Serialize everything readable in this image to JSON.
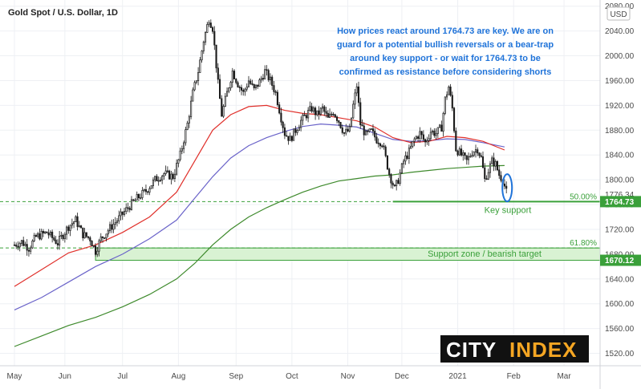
{
  "chart_data": {
    "type": "candlestick",
    "title": "Gold Spot / U.S. Dollar, 1D",
    "currency_badge": "USD",
    "x_labels": [
      "May",
      "Jun",
      "Jul",
      "Aug",
      "Sep",
      "Oct",
      "Nov",
      "Dec",
      "2021",
      "Feb",
      "Mar"
    ],
    "y_ticks": [
      1520,
      1560,
      1600,
      1640,
      1680,
      1720,
      1760,
      1800,
      1840,
      1880,
      1920,
      1960,
      2000,
      2040,
      2080
    ],
    "ylim": [
      1500,
      2090
    ],
    "price_path": [
      {
        "x": 0,
        "y": 1695
      },
      {
        "x": 4,
        "y": 1700
      },
      {
        "x": 8,
        "y": 1690
      },
      {
        "x": 12,
        "y": 1708
      },
      {
        "x": 18,
        "y": 1715
      },
      {
        "x": 24,
        "y": 1698
      },
      {
        "x": 30,
        "y": 1725
      },
      {
        "x": 34,
        "y": 1735
      },
      {
        "x": 38,
        "y": 1712
      },
      {
        "x": 42,
        "y": 1705
      },
      {
        "x": 45,
        "y": 1685
      },
      {
        "x": 48,
        "y": 1705
      },
      {
        "x": 53,
        "y": 1722
      },
      {
        "x": 58,
        "y": 1738
      },
      {
        "x": 63,
        "y": 1755
      },
      {
        "x": 68,
        "y": 1770
      },
      {
        "x": 73,
        "y": 1782
      },
      {
        "x": 78,
        "y": 1800
      },
      {
        "x": 83,
        "y": 1810
      },
      {
        "x": 88,
        "y": 1805
      },
      {
        "x": 92,
        "y": 1840
      },
      {
        "x": 96,
        "y": 1890
      },
      {
        "x": 99,
        "y": 1940
      },
      {
        "x": 102,
        "y": 1975
      },
      {
        "x": 105,
        "y": 2025
      },
      {
        "x": 108,
        "y": 2060
      },
      {
        "x": 110,
        "y": 2045
      },
      {
        "x": 113,
        "y": 1955
      },
      {
        "x": 115,
        "y": 1905
      },
      {
        "x": 118,
        "y": 1940
      },
      {
        "x": 121,
        "y": 1975
      },
      {
        "x": 124,
        "y": 1955
      },
      {
        "x": 127,
        "y": 1940
      },
      {
        "x": 130,
        "y": 1960
      },
      {
        "x": 133,
        "y": 1945
      },
      {
        "x": 136,
        "y": 1958
      },
      {
        "x": 139,
        "y": 1975
      },
      {
        "x": 142,
        "y": 1960
      },
      {
        "x": 145,
        "y": 1940
      },
      {
        "x": 148,
        "y": 1900
      },
      {
        "x": 150,
        "y": 1875
      },
      {
        "x": 153,
        "y": 1865
      },
      {
        "x": 156,
        "y": 1880
      },
      {
        "x": 159,
        "y": 1895
      },
      {
        "x": 162,
        "y": 1905
      },
      {
        "x": 165,
        "y": 1915
      },
      {
        "x": 168,
        "y": 1905
      },
      {
        "x": 171,
        "y": 1915
      },
      {
        "x": 174,
        "y": 1898
      },
      {
        "x": 177,
        "y": 1910
      },
      {
        "x": 180,
        "y": 1895
      },
      {
        "x": 183,
        "y": 1875
      },
      {
        "x": 186,
        "y": 1880
      },
      {
        "x": 188,
        "y": 1920
      },
      {
        "x": 190,
        "y": 1952
      },
      {
        "x": 192,
        "y": 1890
      },
      {
        "x": 195,
        "y": 1872
      },
      {
        "x": 198,
        "y": 1878
      },
      {
        "x": 201,
        "y": 1865
      },
      {
        "x": 204,
        "y": 1860
      },
      {
        "x": 206,
        "y": 1835
      },
      {
        "x": 208,
        "y": 1810
      },
      {
        "x": 211,
        "y": 1785
      },
      {
        "x": 213,
        "y": 1800
      },
      {
        "x": 216,
        "y": 1830
      },
      {
        "x": 219,
        "y": 1845
      },
      {
        "x": 222,
        "y": 1865
      },
      {
        "x": 225,
        "y": 1875
      },
      {
        "x": 228,
        "y": 1860
      },
      {
        "x": 231,
        "y": 1878
      },
      {
        "x": 234,
        "y": 1875
      },
      {
        "x": 237,
        "y": 1885
      },
      {
        "x": 239,
        "y": 1930
      },
      {
        "x": 241,
        "y": 1950
      },
      {
        "x": 243,
        "y": 1915
      },
      {
        "x": 245,
        "y": 1850
      },
      {
        "x": 248,
        "y": 1840
      },
      {
        "x": 251,
        "y": 1830
      },
      {
        "x": 254,
        "y": 1845
      },
      {
        "x": 257,
        "y": 1850
      },
      {
        "x": 259,
        "y": 1835
      },
      {
        "x": 261,
        "y": 1800
      },
      {
        "x": 263,
        "y": 1815
      },
      {
        "x": 265,
        "y": 1830
      },
      {
        "x": 267,
        "y": 1825
      },
      {
        "x": 269,
        "y": 1808
      },
      {
        "x": 271,
        "y": 1800
      },
      {
        "x": 273,
        "y": 1780
      }
    ],
    "ma_red": [
      {
        "x": 0,
        "y": 1628
      },
      {
        "x": 15,
        "y": 1655
      },
      {
        "x": 30,
        "y": 1682
      },
      {
        "x": 45,
        "y": 1695
      },
      {
        "x": 60,
        "y": 1715
      },
      {
        "x": 75,
        "y": 1740
      },
      {
        "x": 90,
        "y": 1780
      },
      {
        "x": 100,
        "y": 1830
      },
      {
        "x": 110,
        "y": 1880
      },
      {
        "x": 120,
        "y": 1905
      },
      {
        "x": 130,
        "y": 1918
      },
      {
        "x": 140,
        "y": 1920
      },
      {
        "x": 150,
        "y": 1912
      },
      {
        "x": 160,
        "y": 1907
      },
      {
        "x": 170,
        "y": 1905
      },
      {
        "x": 180,
        "y": 1900
      },
      {
        "x": 190,
        "y": 1895
      },
      {
        "x": 200,
        "y": 1885
      },
      {
        "x": 210,
        "y": 1868
      },
      {
        "x": 220,
        "y": 1860
      },
      {
        "x": 230,
        "y": 1862
      },
      {
        "x": 240,
        "y": 1870
      },
      {
        "x": 250,
        "y": 1868
      },
      {
        "x": 260,
        "y": 1862
      },
      {
        "x": 272,
        "y": 1848
      }
    ],
    "ma_blue": [
      {
        "x": 0,
        "y": 1590
      },
      {
        "x": 15,
        "y": 1610
      },
      {
        "x": 30,
        "y": 1635
      },
      {
        "x": 45,
        "y": 1660
      },
      {
        "x": 60,
        "y": 1680
      },
      {
        "x": 75,
        "y": 1705
      },
      {
        "x": 90,
        "y": 1735
      },
      {
        "x": 100,
        "y": 1770
      },
      {
        "x": 110,
        "y": 1805
      },
      {
        "x": 120,
        "y": 1835
      },
      {
        "x": 130,
        "y": 1855
      },
      {
        "x": 140,
        "y": 1868
      },
      {
        "x": 150,
        "y": 1878
      },
      {
        "x": 160,
        "y": 1886
      },
      {
        "x": 170,
        "y": 1890
      },
      {
        "x": 180,
        "y": 1888
      },
      {
        "x": 190,
        "y": 1885
      },
      {
        "x": 200,
        "y": 1875
      },
      {
        "x": 210,
        "y": 1865
      },
      {
        "x": 220,
        "y": 1862
      },
      {
        "x": 230,
        "y": 1863
      },
      {
        "x": 240,
        "y": 1866
      },
      {
        "x": 250,
        "y": 1865
      },
      {
        "x": 260,
        "y": 1860
      },
      {
        "x": 272,
        "y": 1853
      }
    ],
    "ma_green": [
      {
        "x": 0,
        "y": 1531
      },
      {
        "x": 15,
        "y": 1548
      },
      {
        "x": 30,
        "y": 1565
      },
      {
        "x": 45,
        "y": 1578
      },
      {
        "x": 60,
        "y": 1595
      },
      {
        "x": 75,
        "y": 1615
      },
      {
        "x": 90,
        "y": 1640
      },
      {
        "x": 100,
        "y": 1665
      },
      {
        "x": 110,
        "y": 1695
      },
      {
        "x": 120,
        "y": 1720
      },
      {
        "x": 130,
        "y": 1740
      },
      {
        "x": 140,
        "y": 1755
      },
      {
        "x": 150,
        "y": 1768
      },
      {
        "x": 160,
        "y": 1780
      },
      {
        "x": 170,
        "y": 1790
      },
      {
        "x": 180,
        "y": 1798
      },
      {
        "x": 190,
        "y": 1802
      },
      {
        "x": 200,
        "y": 1806
      },
      {
        "x": 210,
        "y": 1808
      },
      {
        "x": 220,
        "y": 1812
      },
      {
        "x": 230,
        "y": 1815
      },
      {
        "x": 240,
        "y": 1818
      },
      {
        "x": 250,
        "y": 1820
      },
      {
        "x": 260,
        "y": 1822
      },
      {
        "x": 272,
        "y": 1823
      }
    ],
    "x_label_positions": [
      0,
      28,
      60,
      91,
      123,
      154,
      185,
      215,
      246,
      277,
      305
    ],
    "x_domain": [
      -8,
      325
    ],
    "key_support": {
      "value": 1764.73,
      "label": "1764.73",
      "caption": "Key support",
      "fib": "50.00%",
      "from_x": 210
    },
    "support_zone": {
      "top": 1690,
      "bottom": 1670.12,
      "label": "1670.12",
      "caption": "Support zone / bearish target",
      "fib": "61.80%",
      "from_x": 45
    },
    "last_price_tag": "1776.34",
    "annotation_lines": [
      "How prices react around 1764.73 are key. We are on",
      "guard for a potential bullish reversals or a bear-trap",
      "around key support - or wait for 1764.73 to be",
      "confirmed as resistance before considering shorts"
    ],
    "colors": {
      "up": "#ffffff",
      "down": "#1a1a1a",
      "ma_red": "#e0302b",
      "ma_blue": "#6a63c9",
      "ma_green": "#3e8a2c",
      "support": "#3aa03a",
      "zone_fill": "#d9f2d3",
      "annotation": "#1f73d9",
      "highlight": "#1f73d9"
    }
  },
  "brand": {
    "word1": "CITY",
    "word2": "INDEX"
  }
}
